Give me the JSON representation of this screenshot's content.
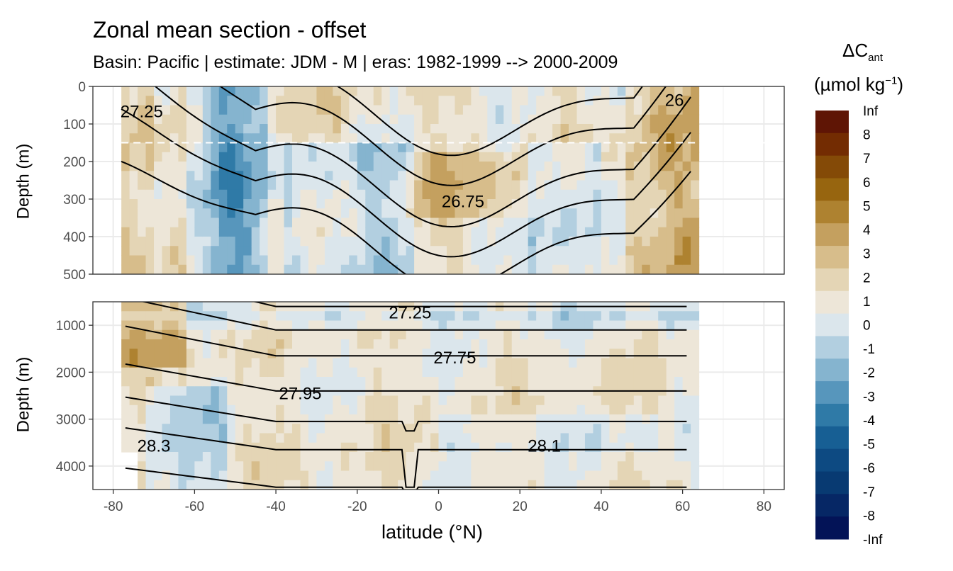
{
  "title": "Zonal mean section - offset",
  "subtitle": "Basin: Pacific | estimate: JDM - M | eras: 1982-1999 --> 2000-2009",
  "chart_data": {
    "type": "heatmap",
    "xlabel": "latitude (°N)",
    "ylabel": "Depth (m)",
    "x_ticks": [
      -80,
      -60,
      -40,
      -20,
      0,
      20,
      40,
      60,
      80
    ],
    "xlim": [
      -85,
      85
    ],
    "data_lat_range": [
      -78,
      64
    ],
    "panels": [
      {
        "name": "upper",
        "ylim": [
          500,
          0
        ],
        "y_ticks": [
          0,
          100,
          200,
          300,
          400,
          500
        ],
        "reference_depth_dashed": 150,
        "contour_labels": [
          {
            "text": "27.25",
            "lat": -73,
            "depth": 65
          },
          {
            "text": "26.75",
            "lat": 6,
            "depth": 305
          },
          {
            "text": "26",
            "lat": 58,
            "depth": 35
          }
        ]
      },
      {
        "name": "lower",
        "ylim": [
          4500,
          500
        ],
        "y_ticks": [
          1000,
          2000,
          3000,
          4000
        ],
        "contour_labels": [
          {
            "text": "27.25",
            "lat": -7,
            "depth": 720
          },
          {
            "text": "27.75",
            "lat": 4,
            "depth": 1680
          },
          {
            "text": "27.95",
            "lat": -34,
            "depth": 2440
          },
          {
            "text": "28.3",
            "lat": -70,
            "depth": 3560
          },
          {
            "text": "28.1",
            "lat": 26,
            "depth": 3560
          }
        ]
      }
    ],
    "legend": {
      "title_main": "ΔC",
      "title_sub": "ant",
      "unit_prefix": "(µmol kg",
      "unit_sup": "−1",
      "unit_suffix": ")",
      "labels": [
        "Inf",
        "8",
        "7",
        "6",
        "5",
        "4",
        "3",
        "2",
        "1",
        "0",
        "-1",
        "-2",
        "-3",
        "-4",
        "-5",
        "-6",
        "-7",
        "-8",
        "-Inf"
      ],
      "colors": [
        "#5f1505",
        "#732c02",
        "#844a07",
        "#97650f",
        "#ae8230",
        "#c4a05f",
        "#d7bd8b",
        "#e4d5b5",
        "#ede6d8",
        "#dbe6ec",
        "#b2cfe0",
        "#85b4cf",
        "#5796bc",
        "#2f7aa7",
        "#175f94",
        "#0d4a82",
        "#083a72",
        "#062765",
        "#031357"
      ]
    }
  }
}
